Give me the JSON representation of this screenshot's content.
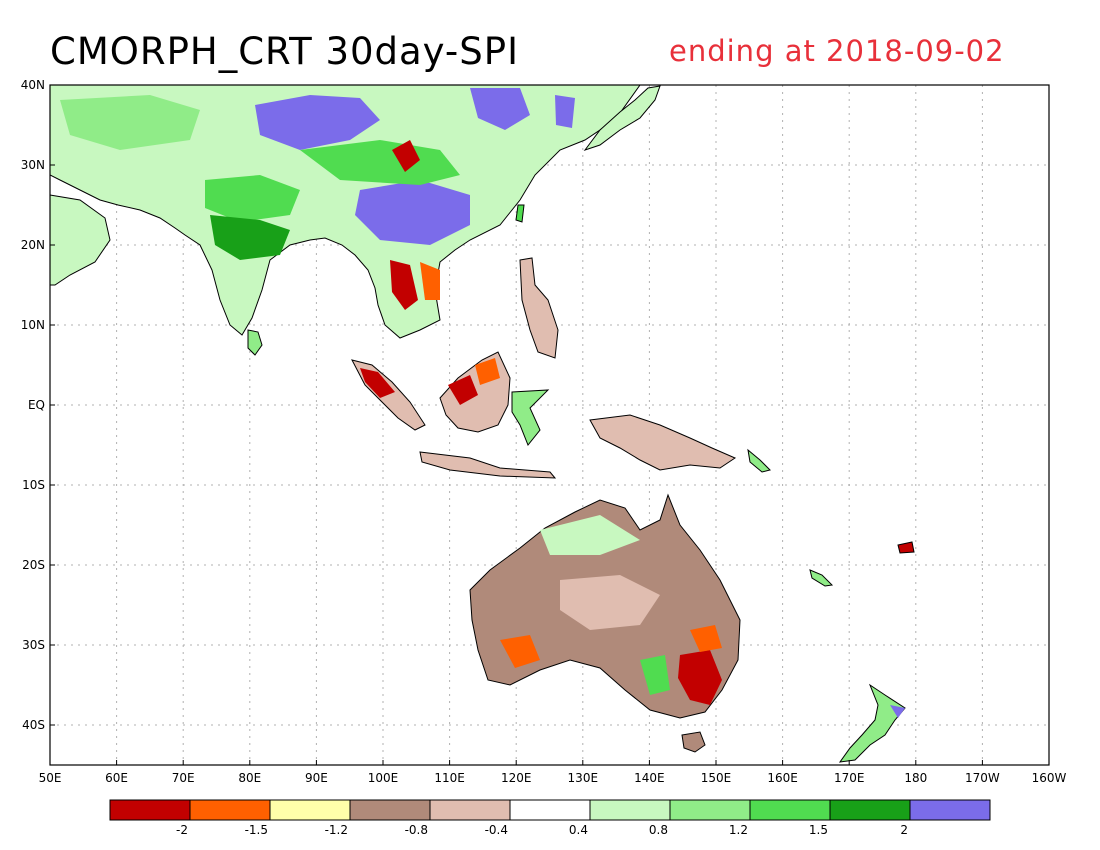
{
  "title": {
    "main": "CMORPH_CRT 30day-SPI",
    "subtitle": "ending at 2018-09-02"
  },
  "colors": {
    "subtitle": "#e8303a",
    "land_outline": "#000000",
    "grid": "#b0b0b0"
  },
  "map": {
    "lon_range": [
      50,
      200
    ],
    "lat_range": [
      -45,
      40
    ],
    "x_tick_labels": [
      "50E",
      "60E",
      "70E",
      "80E",
      "90E",
      "100E",
      "110E",
      "120E",
      "130E",
      "140E",
      "150E",
      "160E",
      "170E",
      "180",
      "170W",
      "160W"
    ],
    "y_tick_labels": [
      "40N",
      "30N",
      "20N",
      "10N",
      "EQ",
      "10S",
      "20S",
      "30S",
      "40S"
    ],
    "y_tick_values": [
      40,
      30,
      20,
      10,
      0,
      -10,
      -20,
      -30,
      -40
    ]
  },
  "legend": {
    "colors": [
      "#c20000",
      "#ff6000",
      "#ffffaa",
      "#b08a7a",
      "#e0bdb0",
      "#ffffff",
      "#c8f8c0",
      "#90ec88",
      "#50dc50",
      "#18a018",
      "#7b6cea"
    ],
    "labels": [
      "-2",
      "-1.5",
      "-1.2",
      "-0.8",
      "-0.4",
      "0.4",
      "0.8",
      "1.2",
      "1.5",
      "2"
    ]
  }
}
